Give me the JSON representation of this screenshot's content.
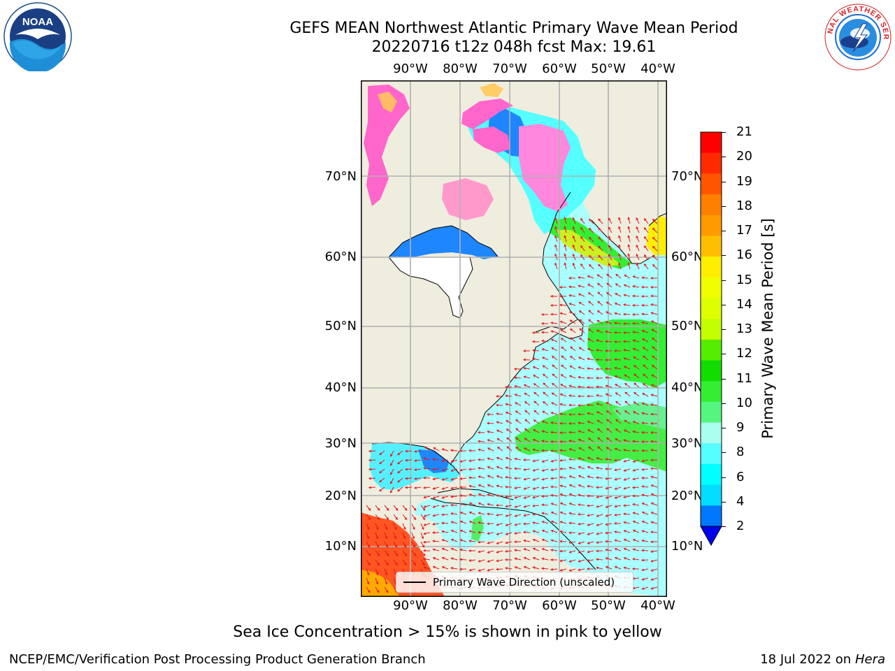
{
  "title": {
    "line1": "GEFS MEAN Northwest Atlantic Primary Wave Mean Period",
    "line2": "20220716 t12z 048h fcst   Max: 19.61"
  },
  "map": {
    "lon_labels": [
      "90°W",
      "80°W",
      "70°W",
      "60°W",
      "50°W",
      "40°W"
    ],
    "lat_labels": [
      "70°N",
      "60°N",
      "50°N",
      "40°N",
      "30°N",
      "20°N",
      "10°N"
    ],
    "land_color": "#efedde",
    "grid_color": "#b0b0b0",
    "arrow_color": "#e8141c"
  },
  "legend": {
    "label": "Primary Wave Direction (unscaled)"
  },
  "colorbar": {
    "label": "Primary Wave Mean Period [s]",
    "tick_labels": [
      "21",
      "20",
      "19",
      "18",
      "17",
      "16",
      "15",
      "14",
      "13",
      "12",
      "11",
      "10",
      "9",
      "8",
      "6",
      "4",
      "2"
    ],
    "colors": [
      "#ff0000",
      "#ff2a00",
      "#ff5500",
      "#ff7f00",
      "#ff9a00",
      "#ffbf00",
      "#ffee00",
      "#f0ff00",
      "#ddff00",
      "#c4ff00",
      "#55ee00",
      "#11dd00",
      "#33ee33",
      "#55f580",
      "#aaffee",
      "#55ffff",
      "#00ffff",
      "#00ddff",
      "#0077ff"
    ],
    "extend_color": "#0000ee"
  },
  "note": "Sea Ice Concentration > 15% is shown in pink to yellow",
  "footer": {
    "left": "NCEP/EMC/Verification Post Processing Product Generation Branch",
    "date": "18 Jul 2022 on ",
    "host": "Hera"
  },
  "logos": {
    "noaa": "NOAA",
    "nws": "NATIONAL WEATHER SERVICE"
  }
}
